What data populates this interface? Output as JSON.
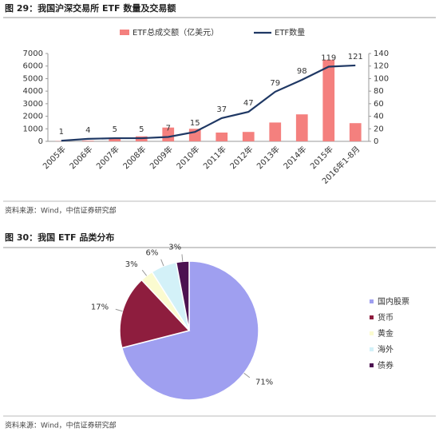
{
  "chart_data": [
    {
      "type": "bar",
      "title": "图 29：我国沪深交易所 ETF 数量及交易额",
      "categories": [
        "2005年",
        "2006年",
        "2007年",
        "2008年",
        "2009年",
        "2010年",
        "2011年",
        "2012年",
        "2013年",
        "2014年",
        "2015年",
        "2016年1-8月"
      ],
      "series": [
        {
          "name": "ETF总成交额（亿美元）",
          "type": "bar",
          "color": "#f4807e",
          "values": [
            20,
            50,
            300,
            400,
            1100,
            1000,
            700,
            750,
            1500,
            2150,
            6500,
            1450
          ]
        },
        {
          "name": "ETF数量",
          "type": "line",
          "axis": "y2",
          "color": "#1f3864",
          "values": [
            1,
            4,
            5,
            5,
            7,
            15,
            37,
            47,
            79,
            98,
            119,
            121
          ]
        }
      ],
      "ylim": [
        0,
        7000
      ],
      "yticks": [
        0,
        1000,
        2000,
        3000,
        4000,
        5000,
        6000,
        7000
      ],
      "y2lim": [
        0,
        140
      ],
      "y2ticks": [
        0,
        20,
        40,
        60,
        80,
        100,
        120,
        140
      ],
      "source": "资料来源：Wind，中信证券研究部"
    },
    {
      "type": "pie",
      "title": "图 30：我国 ETF 品类分布",
      "categories": [
        "国内股票",
        "货币",
        "黄金",
        "海外",
        "债券"
      ],
      "values": [
        71,
        17,
        3,
        6,
        3
      ],
      "value_labels": [
        "71%",
        "17%",
        "3%",
        "6%",
        "3%"
      ],
      "colors": [
        "#9f9ff0",
        "#8e1d3e",
        "#fbfbd0",
        "#d3f1f8",
        "#4c1251"
      ],
      "source": "资料来源：Wind，中信证券研究部"
    }
  ]
}
